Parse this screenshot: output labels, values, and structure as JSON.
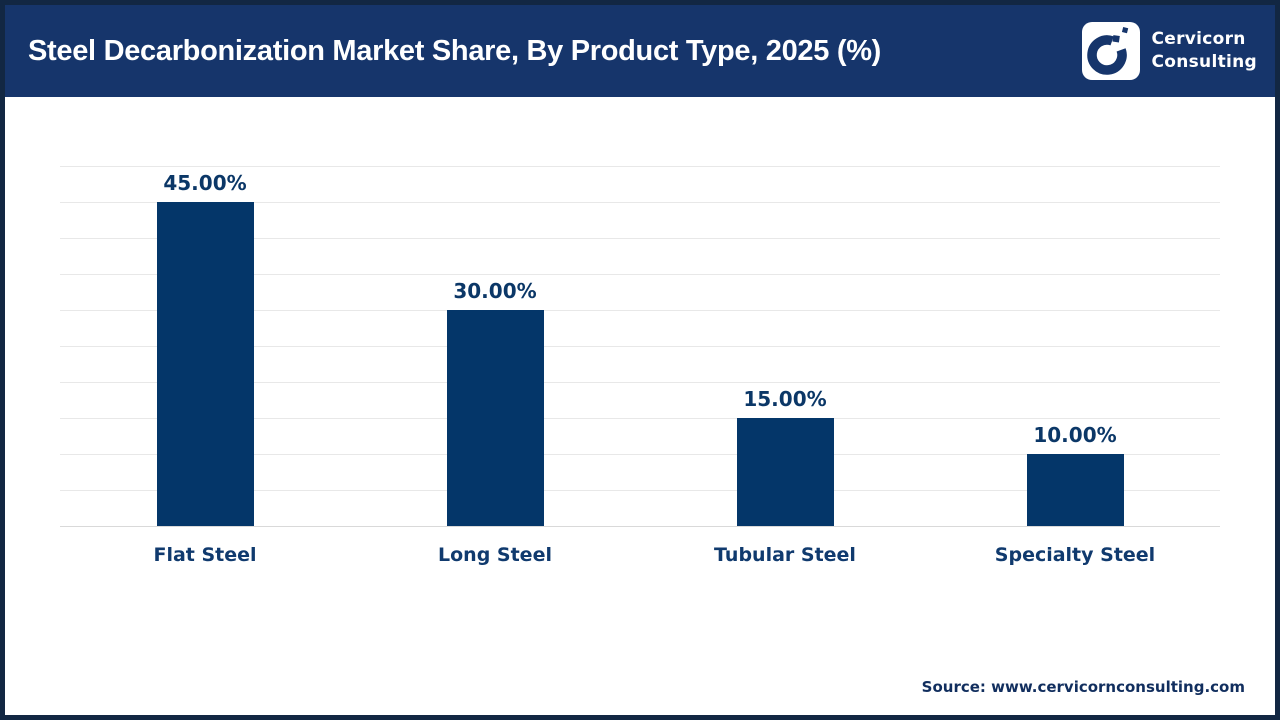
{
  "header": {
    "title": "Steel Decarbonization Market Share, By Product Type, 2025 (%)",
    "logo": {
      "line1": "Cervicorn",
      "line2": "Consulting"
    }
  },
  "chart_data": {
    "type": "bar",
    "title": "Steel Decarbonization Market Share, By Product Type, 2025 (%)",
    "categories": [
      "Flat Steel",
      "Long Steel",
      "Tubular Steel",
      "Specialty Steel"
    ],
    "values": [
      45,
      30,
      15,
      10
    ],
    "value_labels": [
      "45.00%",
      "30.00%",
      "15.00%",
      "10.00%"
    ],
    "xlabel": "",
    "ylabel": "",
    "ylim": [
      0,
      50
    ],
    "gridline_step": 5,
    "grid": true,
    "legend": false,
    "bar_color": "#043669",
    "value_label_color": "#0b3767",
    "category_label_color": "#103a6e"
  },
  "footer": {
    "source": "Source: www.cervicornconsulting.com"
  },
  "colors": {
    "header_background": "#16356b",
    "page_border": "#122743",
    "gridline": "#e8e8e8",
    "title_text": "#ffffff"
  }
}
